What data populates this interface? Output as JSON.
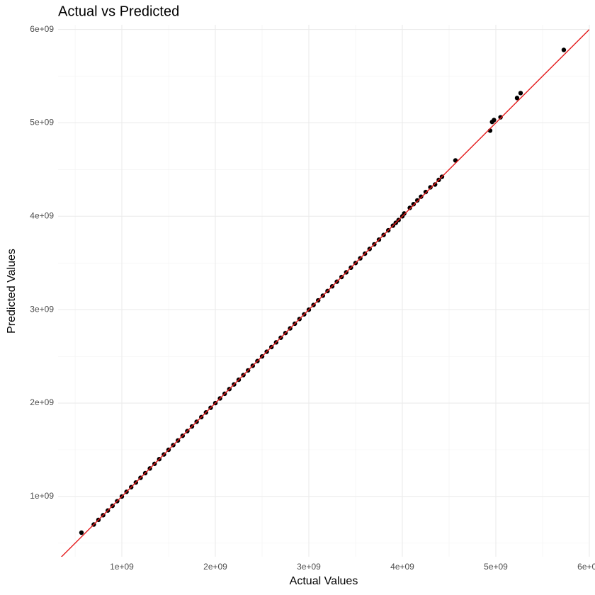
{
  "chart_data": {
    "type": "scatter",
    "title": "Actual vs Predicted",
    "x_label": "Actual Values",
    "y_label": "Predicted Values",
    "xlim": [
      318000000.0,
      6000000000.0
    ],
    "ylim": [
      355000000.0,
      6050000000.0
    ],
    "xticks": [
      {
        "value": 1000000000.0,
        "label": "1e+09"
      },
      {
        "value": 2000000000.0,
        "label": "2e+09"
      },
      {
        "value": 3000000000.0,
        "label": "3e+09"
      },
      {
        "value": 4000000000.0,
        "label": "4e+09"
      },
      {
        "value": 5000000000.0,
        "label": "5e+09"
      },
      {
        "value": 6000000000.0,
        "label": "6e+09"
      }
    ],
    "yticks": [
      {
        "value": 1000000000.0,
        "label": "1e+09"
      },
      {
        "value": 2000000000.0,
        "label": "2e+09"
      },
      {
        "value": 3000000000.0,
        "label": "3e+09"
      },
      {
        "value": 4000000000.0,
        "label": "4e+09"
      },
      {
        "value": 5000000000.0,
        "label": "5e+09"
      },
      {
        "value": 6000000000.0,
        "label": "6e+09"
      }
    ],
    "grid": true,
    "minor_grid": true,
    "point_color": "#000000",
    "reference_line": {
      "slope": 1,
      "intercept": 0,
      "color": "#e41a1c"
    },
    "x": [
      568000000.0,
      700000000.0,
      750000000.0,
      800000000.0,
      850000000.0,
      900000000.0,
      950000000.0,
      1000000000.0,
      1050000000.0,
      1100000000.0,
      1150000000.0,
      1200000000.0,
      1250000000.0,
      1300000000.0,
      1350000000.0,
      1400000000.0,
      1450000000.0,
      1500000000.0,
      1550000000.0,
      1600000000.0,
      1650000000.0,
      1700000000.0,
      1750000000.0,
      1800000000.0,
      1850000000.0,
      1900000000.0,
      1950000000.0,
      2000000000.0,
      2050000000.0,
      2100000000.0,
      2150000000.0,
      2200000000.0,
      2250000000.0,
      2300000000.0,
      2350000000.0,
      2400000000.0,
      2450000000.0,
      2500000000.0,
      2550000000.0,
      2600000000.0,
      2650000000.0,
      2700000000.0,
      2750000000.0,
      2800000000.0,
      2850000000.0,
      2900000000.0,
      2950000000.0,
      3000000000.0,
      3050000000.0,
      3100000000.0,
      3150000000.0,
      3200000000.0,
      3250000000.0,
      3300000000.0,
      3350000000.0,
      3400000000.0,
      3450000000.0,
      3500000000.0,
      3550000000.0,
      3600000000.0,
      3650000000.0,
      3700000000.0,
      3750000000.0,
      3800000000.0,
      3850000000.0,
      3900000000.0,
      3930000000.0,
      3960000000.0,
      4000000000.0,
      4020000000.0,
      4080000000.0,
      4120000000.0,
      4160000000.0,
      4200000000.0,
      4250000000.0,
      4300000000.0,
      4350000000.0,
      4390000000.0,
      4424000000.0,
      4568000000.0,
      4939000000.0,
      4960000000.0,
      4980000000.0,
      5050000000.0,
      5227000000.0,
      5265000000.0,
      5727000000.0
    ],
    "y": [
      613000000.0,
      700000000.0,
      750000000.0,
      800000000.0,
      850000000.0,
      900000000.0,
      950000000.0,
      1000000000.0,
      1050000000.0,
      1100000000.0,
      1150000000.0,
      1200000000.0,
      1250000000.0,
      1300000000.0,
      1350000000.0,
      1400000000.0,
      1450000000.0,
      1500000000.0,
      1550000000.0,
      1600000000.0,
      1650000000.0,
      1700000000.0,
      1750000000.0,
      1800000000.0,
      1850000000.0,
      1900000000.0,
      1950000000.0,
      2000000000.0,
      2050000000.0,
      2100000000.0,
      2150000000.0,
      2200000000.0,
      2250000000.0,
      2300000000.0,
      2350000000.0,
      2400000000.0,
      2450000000.0,
      2500000000.0,
      2550000000.0,
      2600000000.0,
      2650000000.0,
      2700000000.0,
      2750000000.0,
      2800000000.0,
      2850000000.0,
      2900000000.0,
      2950000000.0,
      3000000000.0,
      3050000000.0,
      3100000000.0,
      3150000000.0,
      3200000000.0,
      3250000000.0,
      3300000000.0,
      3350000000.0,
      3400000000.0,
      3450000000.0,
      3500000000.0,
      3550000000.0,
      3600000000.0,
      3650000000.0,
      3700000000.0,
      3750000000.0,
      3800000000.0,
      3850000000.0,
      3900000000.0,
      3930000000.0,
      3960000000.0,
      4000000000.0,
      4030000000.0,
      4090000000.0,
      4130000000.0,
      4170000000.0,
      4210000000.0,
      4260000000.0,
      4310000000.0,
      4340000000.0,
      4390000000.0,
      4423000000.0,
      4598000000.0,
      4917000000.0,
      5010000000.0,
      5030000000.0,
      5060000000.0,
      5266000000.0,
      5319000000.0,
      5781000000.0
    ]
  }
}
